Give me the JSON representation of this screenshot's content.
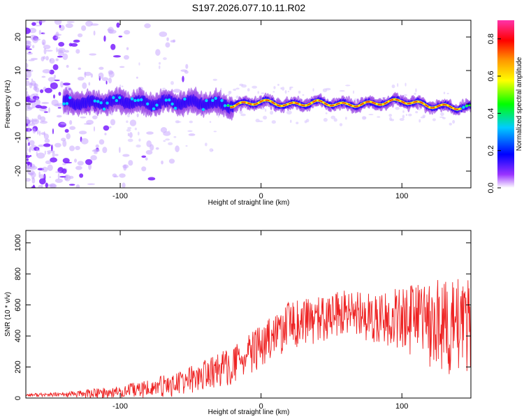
{
  "title": "S197.2026.077.10.11.R02",
  "chart_data": [
    {
      "type": "heatmap",
      "panel": "spectrogram",
      "xlabel": "Height of straight line (km)",
      "ylabel": "Frequency (Hz)",
      "xlim": [
        -167,
        149
      ],
      "ylim": [
        -25,
        25
      ],
      "xticks": [
        -100,
        0,
        100
      ],
      "yticks": [
        -20,
        -10,
        0,
        10,
        20
      ],
      "ridge": {
        "description": "dominant signal trace near 0 Hz",
        "x": [
          -135,
          -120,
          -100,
          -80,
          -60,
          -40,
          -20,
          0,
          20,
          40,
          60,
          80,
          100,
          120,
          140
        ],
        "frequency": [
          0.5,
          0.3,
          0.8,
          0.2,
          0.6,
          0.4,
          -0.5,
          0.8,
          -0.3,
          0.5,
          -0.3,
          0.2,
          1.0,
          -0.5,
          -1.0
        ]
      },
      "colorbar": {
        "label": "Normalized spectral amplitude",
        "range": [
          0.0,
          0.9
        ],
        "ticks": [
          0.0,
          0.2,
          0.4,
          0.6,
          0.8
        ],
        "colors": [
          "#ffffff",
          "#9933ff",
          "#0000ff",
          "#00ccff",
          "#00ff00",
          "#ffff00",
          "#ff9900",
          "#ff0000",
          "#ff33aa"
        ]
      }
    },
    {
      "type": "line",
      "panel": "snr",
      "xlabel": "Height of straight line (km)",
      "ylabel": "SNR (10 * v/v)",
      "xlim": [
        -167,
        149
      ],
      "ylim": [
        0,
        1080
      ],
      "xticks": [
        -100,
        0,
        100
      ],
      "yticks": [
        0,
        200,
        400,
        600,
        800,
        1000
      ],
      "color": "#ee2222",
      "envelope": {
        "x": [
          -167,
          -140,
          -120,
          -100,
          -80,
          -60,
          -40,
          -20,
          0,
          20,
          40,
          60,
          80,
          100,
          120,
          140,
          149
        ],
        "mean": [
          20,
          22,
          30,
          40,
          60,
          90,
          150,
          210,
          330,
          470,
          500,
          540,
          520,
          510,
          480,
          460,
          450
        ],
        "amp": [
          10,
          15,
          30,
          40,
          60,
          80,
          100,
          120,
          140,
          150,
          150,
          160,
          160,
          200,
          280,
          330,
          320
        ]
      }
    }
  ]
}
